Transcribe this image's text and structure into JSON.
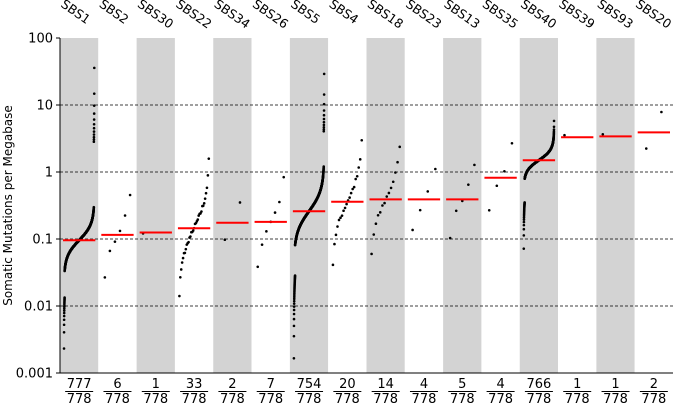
{
  "chart_data": {
    "type": "scatter",
    "title": "",
    "xlabel": "",
    "ylabel": "Somatic Mutations per Megabase",
    "yscale": "log",
    "ylim": [
      0.001,
      100
    ],
    "yticks": [
      {
        "value": 0.001,
        "label": "0.001"
      },
      {
        "value": 0.01,
        "label": "0.01"
      },
      {
        "value": 0.1,
        "label": "0.1"
      },
      {
        "value": 1,
        "label": "1"
      },
      {
        "value": 10,
        "label": "10"
      },
      {
        "value": 100,
        "label": "100"
      }
    ],
    "grid": "horizontal dashed at decades",
    "band_colors": [
      "#d3d3d3",
      "#ffffff"
    ],
    "point_color": "#000000",
    "median_color": "#ff0000",
    "total_samples": "778",
    "signatures": [
      {
        "name": "SBS1",
        "count": "777",
        "median": 0.096
      },
      {
        "name": "SBS2",
        "count": "6",
        "median": 0.115
      },
      {
        "name": "SBS30",
        "count": "1",
        "median": 0.125
      },
      {
        "name": "SBS22",
        "count": "33",
        "median": 0.145
      },
      {
        "name": "SBS34",
        "count": "2",
        "median": 0.175
      },
      {
        "name": "SBS26",
        "count": "7",
        "median": 0.18
      },
      {
        "name": "SBS5",
        "count": "754",
        "median": 0.26
      },
      {
        "name": "SBS4",
        "count": "20",
        "median": 0.36
      },
      {
        "name": "SBS18",
        "count": "14",
        "median": 0.39
      },
      {
        "name": "SBS23",
        "count": "4",
        "median": 0.39
      },
      {
        "name": "SBS13",
        "count": "5",
        "median": 0.39
      },
      {
        "name": "SBS35",
        "count": "4",
        "median": 0.82
      },
      {
        "name": "SBS40",
        "count": "766",
        "median": 1.5
      },
      {
        "name": "SBS39",
        "count": "1",
        "median": 3.3
      },
      {
        "name": "SBS93",
        "count": "1",
        "median": 3.4
      },
      {
        "name": "SBS20",
        "count": "2",
        "median": 3.9
      }
    ]
  }
}
